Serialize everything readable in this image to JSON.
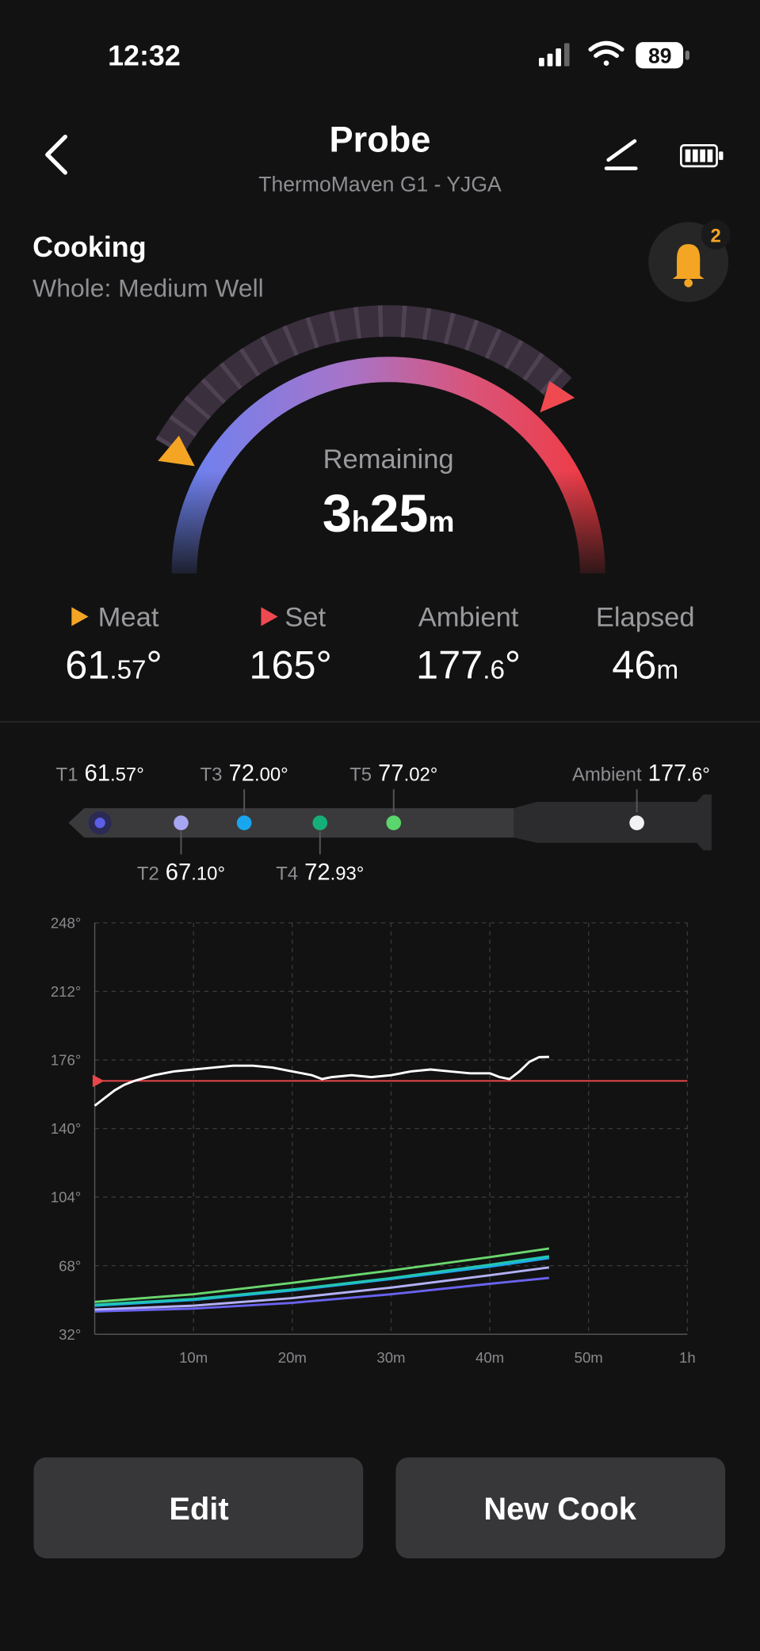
{
  "status_bar": {
    "time": "12:32",
    "battery": "89"
  },
  "header": {
    "title": "Probe",
    "subtitle": "ThermoMaven G1 - YJGA"
  },
  "status": {
    "state": "Cooking",
    "preset": "Whole: Medium Well",
    "alerts": "2"
  },
  "remaining": {
    "label": "Remaining",
    "hours": "3",
    "hours_unit": "h",
    "minutes": "25",
    "minutes_unit": "m"
  },
  "stats": [
    {
      "label": "Meat",
      "main": "61",
      "fraction": ".57",
      "unit": "°"
    },
    {
      "label": "Set",
      "main": "165",
      "unit": "°"
    },
    {
      "label": "Ambient",
      "main": "177",
      "fraction": ".6",
      "unit": "°"
    },
    {
      "label": "Elapsed",
      "main": "46",
      "suffix": "m"
    }
  ],
  "probe": {
    "sensors": [
      {
        "label": "T1",
        "main": "61",
        "fraction": ".57°"
      },
      {
        "label": "T2",
        "main": "67",
        "fraction": ".10°"
      },
      {
        "label": "T3",
        "main": "72",
        "fraction": ".00°"
      },
      {
        "label": "T4",
        "main": "72",
        "fraction": ".93°"
      },
      {
        "label": "T5",
        "main": "77",
        "fraction": ".02°"
      }
    ],
    "ambient": {
      "label": "Ambient",
      "main": "177",
      "fraction": ".6°"
    }
  },
  "chart_data": {
    "type": "line",
    "xlim": [
      0,
      60
    ],
    "xticks": [
      {
        "value": 10,
        "label": "10m"
      },
      {
        "value": 20,
        "label": "20m"
      },
      {
        "value": 30,
        "label": "30m"
      },
      {
        "value": 40,
        "label": "40m"
      },
      {
        "value": 50,
        "label": "50m"
      },
      {
        "value": 60,
        "label": "1h"
      }
    ],
    "ylim": [
      32,
      248
    ],
    "yticks": [
      {
        "value": 32,
        "label": "32°"
      },
      {
        "value": 68,
        "label": "68°"
      },
      {
        "value": 104,
        "label": "104°"
      },
      {
        "value": 140,
        "label": "140°"
      },
      {
        "value": 176,
        "label": "176°"
      },
      {
        "value": 212,
        "label": "212°"
      },
      {
        "value": 248,
        "label": "248°"
      }
    ],
    "grid": true,
    "series": [
      {
        "name": "Set",
        "color": "#e9464a",
        "x": [
          0,
          60
        ],
        "values": [
          165,
          165
        ]
      },
      {
        "name": "Ambient",
        "color": "#ffffff",
        "x": [
          0,
          1,
          2,
          3,
          4,
          6,
          8,
          10,
          12,
          14,
          16,
          18,
          20,
          22,
          23,
          24,
          26,
          28,
          30,
          32,
          34,
          36,
          38,
          40,
          41,
          42,
          43,
          44,
          45,
          46
        ],
        "values": [
          152,
          156,
          160,
          163,
          165,
          168,
          170,
          171,
          172,
          173,
          173,
          172,
          170,
          168,
          166,
          167,
          168,
          167,
          168,
          170,
          171,
          170,
          169,
          169,
          167,
          166,
          170,
          175,
          177.5,
          177.6
        ]
      },
      {
        "name": "T1",
        "color": "#6a63ef",
        "x": [
          0,
          10,
          20,
          30,
          40,
          46
        ],
        "values": [
          44,
          45.5,
          48.5,
          53,
          58.5,
          61.57
        ]
      },
      {
        "name": "T2",
        "color": "#b3b1f6",
        "x": [
          0,
          10,
          20,
          30,
          40,
          46
        ],
        "values": [
          45,
          47,
          51,
          56.5,
          63,
          67.1
        ]
      },
      {
        "name": "T3",
        "color": "#1ea8ee",
        "x": [
          0,
          10,
          20,
          30,
          40,
          46
        ],
        "values": [
          47,
          50,
          55,
          61,
          67.5,
          72
        ]
      },
      {
        "name": "T4",
        "color": "#22c6b0",
        "x": [
          0,
          10,
          20,
          30,
          40,
          46
        ],
        "values": [
          47.5,
          50.5,
          55.5,
          61.5,
          68.5,
          72.93
        ]
      },
      {
        "name": "T5",
        "color": "#6ad66e",
        "x": [
          0,
          10,
          20,
          30,
          40,
          46
        ],
        "values": [
          49,
          53,
          59,
          65.5,
          72.5,
          77.02
        ]
      }
    ]
  },
  "buttons": [
    "Edit",
    "New Cook"
  ]
}
